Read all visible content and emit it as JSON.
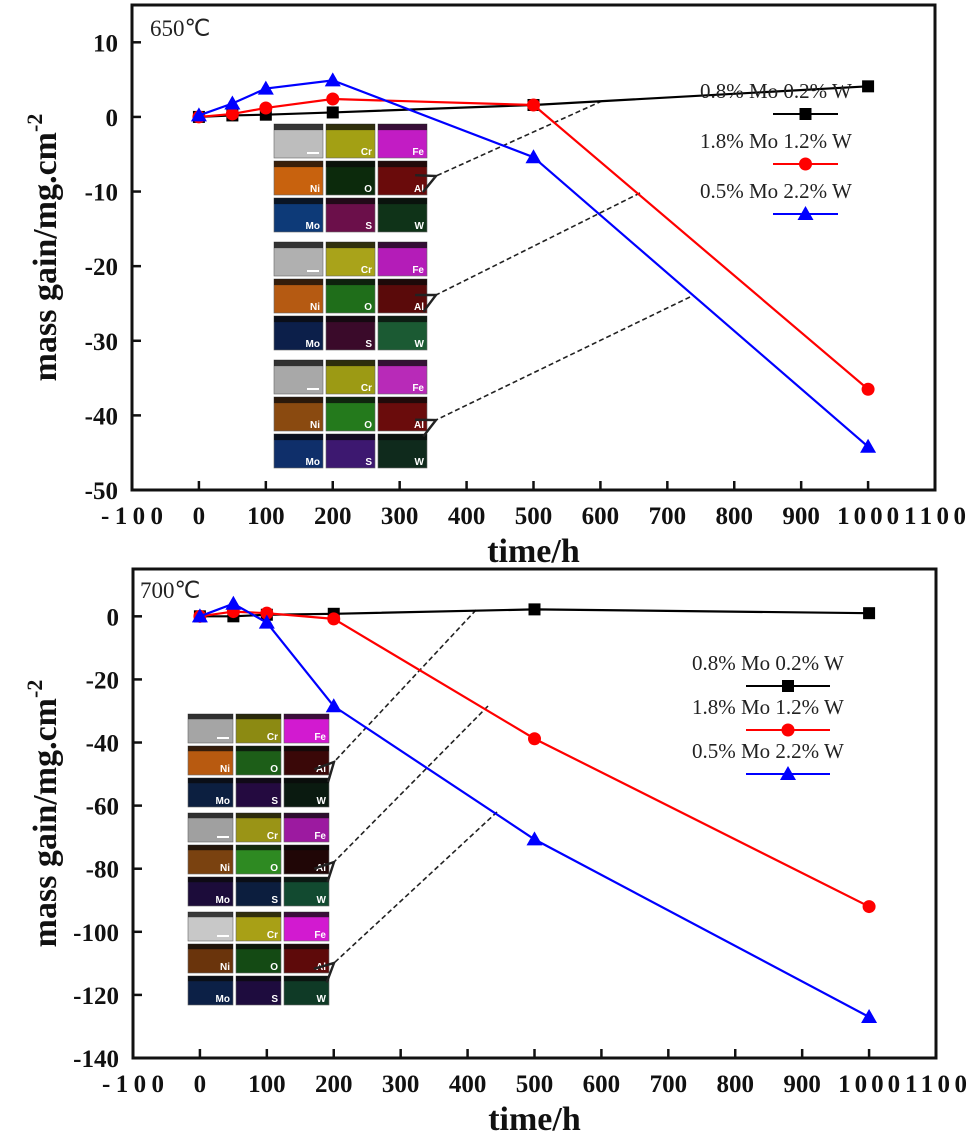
{
  "figure": {
    "panels": [
      "top-650C",
      "bottom-700C"
    ]
  },
  "chart_data": [
    {
      "type": "line",
      "title": "650℃",
      "xlabel": "time/h",
      "ylabel": "mass gain/mg.cm",
      "ylabel_superscript": "-2",
      "xlim": [
        -100,
        1100
      ],
      "ylim": [
        -50,
        15
      ],
      "xticks": [
        -100,
        0,
        100,
        200,
        300,
        400,
        500,
        600,
        700,
        800,
        900,
        1000,
        1100
      ],
      "xtick_labels": [
        "-100",
        "0",
        "100",
        "200",
        "300",
        "400",
        "500",
        "600",
        "700",
        "800",
        "900",
        "1000",
        "1100"
      ],
      "yticks": [
        10,
        0,
        -10,
        -20,
        -30,
        -40,
        -50
      ],
      "ytick_labels": [
        "10",
        "0",
        "-10",
        "-20",
        "-30",
        "-40",
        "-50"
      ],
      "grid": false,
      "legend_position": "right",
      "x": [
        0,
        50,
        100,
        200,
        500,
        1000
      ],
      "series": [
        {
          "name": "0.8% Mo 0.2% W",
          "color": "#000000",
          "marker": "square",
          "values": [
            0,
            0.2,
            0.3,
            0.6,
            1.6,
            4.1
          ]
        },
        {
          "name": "1.8% Mo 1.2% W",
          "color": "#ff0000",
          "marker": "circle",
          "values": [
            0,
            0.4,
            1.2,
            2.4,
            1.6,
            -36.5
          ]
        },
        {
          "name": "0.5% Mo 2.2% W",
          "color": "#0000ff",
          "marker": "triangle",
          "values": [
            0.2,
            1.8,
            3.8,
            4.9,
            -5.4,
            -44.2
          ]
        }
      ],
      "inset_maps": [
        {
          "panels": [
            "",
            "Cr",
            "Fe",
            "Ni",
            "O",
            "Al",
            "Mo",
            "S",
            "W"
          ],
          "colors": [
            "#bdbdbd",
            "#a3a014",
            "#c21cc4",
            "#c8620e",
            "#0c2a0c",
            "#6a0b0b",
            "#0d3a78",
            "#6b0f4a",
            "#0f3318"
          ]
        },
        {
          "panels": [
            "",
            "Cr",
            "Fe",
            "Ni",
            "O",
            "Al",
            "Mo",
            "S",
            "W"
          ],
          "colors": [
            "#b0b0b0",
            "#a9a31a",
            "#b41cb8",
            "#b55a12",
            "#1f6e1a",
            "#5a0a0a",
            "#0c1f4a",
            "#3a0a2a",
            "#1b5a33"
          ]
        },
        {
          "panels": [
            "",
            "Cr",
            "Fe",
            "Ni",
            "O",
            "Al",
            "Mo",
            "S",
            "W"
          ],
          "colors": [
            "#a8a8a8",
            "#9c9a14",
            "#b82ab8",
            "#8a4a10",
            "#247a1c",
            "#6a0c0c",
            "#0f2f6a",
            "#3d1870",
            "#0f2a1c"
          ]
        }
      ],
      "arrows": 3
    },
    {
      "type": "line",
      "title": "700℃",
      "xlabel": "time/h",
      "ylabel": "mass gain/mg.cm",
      "ylabel_superscript": "-2",
      "xlim": [
        -100,
        1100
      ],
      "ylim": [
        -140,
        15
      ],
      "xticks": [
        -100,
        0,
        100,
        200,
        300,
        400,
        500,
        600,
        700,
        800,
        900,
        1000,
        1100
      ],
      "xtick_labels": [
        "-100",
        "0",
        "100",
        "200",
        "300",
        "400",
        "500",
        "600",
        "700",
        "800",
        "900",
        "1000",
        "1100"
      ],
      "yticks": [
        0,
        -20,
        -40,
        -60,
        -80,
        -100,
        -120,
        -140
      ],
      "ytick_labels": [
        "0",
        "-20",
        "-40",
        "-60",
        "-80",
        "-100",
        "-120",
        "-140"
      ],
      "grid": false,
      "legend_position": "right",
      "x": [
        0,
        50,
        100,
        200,
        500,
        1000
      ],
      "series": [
        {
          "name": "0.8% Mo 0.2% W",
          "color": "#000000",
          "marker": "square",
          "values": [
            0,
            0,
            0.5,
            0.8,
            2.2,
            1.0
          ]
        },
        {
          "name": "1.8% Mo 1.2% W",
          "color": "#ff0000",
          "marker": "circle",
          "values": [
            0,
            1.5,
            1.0,
            -0.8,
            -38.8,
            -92.0
          ]
        },
        {
          "name": "0.5% Mo 2.2% W",
          "color": "#0000ff",
          "marker": "triangle",
          "values": [
            0,
            4.0,
            -2.0,
            -28.5,
            -70.7,
            -127.0
          ]
        }
      ],
      "inset_maps": [
        {
          "panels": [
            "",
            "Cr",
            "Fe",
            "Ni",
            "O",
            "Al",
            "Mo",
            "S",
            "W"
          ],
          "colors": [
            "#a5a5a5",
            "#8c8a12",
            "#d21ad0",
            "#b85a10",
            "#1d5e18",
            "#3a0808",
            "#0c1f40",
            "#240a40",
            "#0a1a10"
          ]
        },
        {
          "panels": [
            "",
            "Cr",
            "Fe",
            "Ni",
            "O",
            "Al",
            "Mo",
            "S",
            "W"
          ],
          "colors": [
            "#a0a0a0",
            "#9a9416",
            "#9c1aa0",
            "#7a4210",
            "#2e8a22",
            "#200606",
            "#1c0c3a",
            "#0c1e3e",
            "#124a30"
          ]
        },
        {
          "panels": [
            "",
            "Cr",
            "Fe",
            "Ni",
            "O",
            "Al",
            "Mo",
            "S",
            "W"
          ],
          "colors": [
            "#c8c8c8",
            "#a8a016",
            "#d21ad0",
            "#6a340c",
            "#144a14",
            "#5e0a0a",
            "#0c2046",
            "#1e0c3e",
            "#0f3a26"
          ]
        }
      ],
      "arrows": 3
    }
  ]
}
